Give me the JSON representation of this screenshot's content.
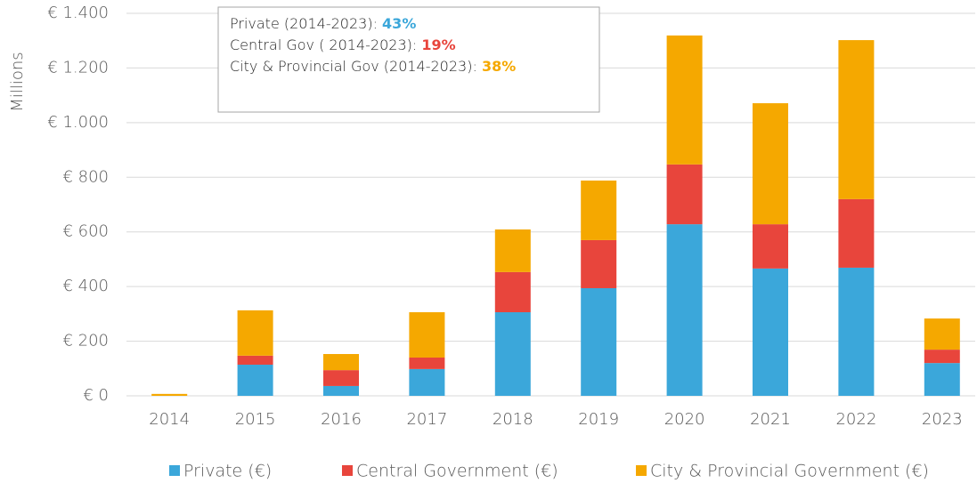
{
  "chart_data": {
    "type": "stacked_bar",
    "y_label": "Millions",
    "categories": [
      "2014",
      "2015",
      "2016",
      "2017",
      "2018",
      "2019",
      "2020",
      "2021",
      "2022",
      "2023"
    ],
    "series": [
      {
        "name": "Private (€)",
        "color": "#3ba7da",
        "values": [
          0,
          114,
          36,
          98,
          306,
          394,
          628,
          466,
          469,
          120
        ]
      },
      {
        "name": "Central Government (€)",
        "color": "#e8453c",
        "values": [
          0,
          33,
          58,
          42,
          147,
          176,
          219,
          162,
          251,
          49
        ]
      },
      {
        "name": "City & Provincial Government (€)",
        "color": "#f5a800",
        "values": [
          7,
          166,
          59,
          166,
          156,
          218,
          472,
          443,
          582,
          114
        ]
      }
    ],
    "ylim": [
      0,
      1400
    ],
    "yticks": [
      {
        "value": 0,
        "label": "€ 0"
      },
      {
        "value": 200,
        "label": "€ 200"
      },
      {
        "value": 400,
        "label": "€ 400"
      },
      {
        "value": 600,
        "label": "€ 600"
      },
      {
        "value": 800,
        "label": "€ 800"
      },
      {
        "value": 1000,
        "label": "€ 1.000"
      },
      {
        "value": 1200,
        "label": "€ 1.200"
      },
      {
        "value": 1400,
        "label": "€ 1.400"
      }
    ],
    "grid": true,
    "legend": "bottom",
    "annotations": [
      {
        "text": "Private (2014-2023): ",
        "highlight": "43%",
        "color": "#3ba7da"
      },
      {
        "text": "Central Gov ( 2014-2023): ",
        "highlight": "19%",
        "color": "#e8453c"
      },
      {
        "text": "City & Provincial Gov (2014-2023): ",
        "highlight": "38%",
        "color": "#f5a800"
      }
    ]
  }
}
